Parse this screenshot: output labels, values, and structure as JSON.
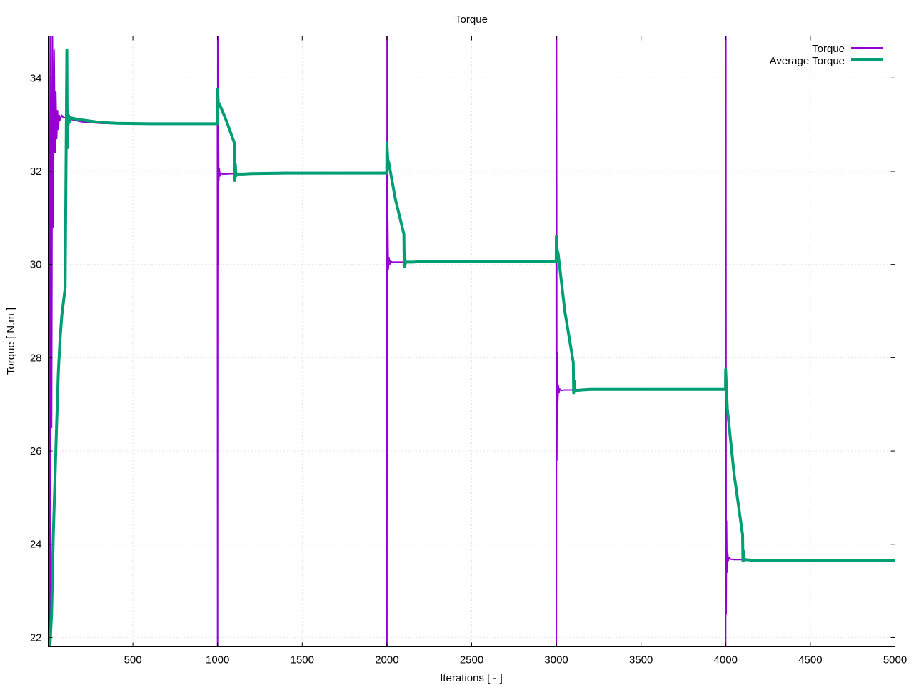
{
  "chart_data": {
    "type": "line",
    "title": "Torque",
    "xlabel": "Iterations [ - ]",
    "ylabel": "Torque [ N.m ]",
    "xlim": [
      0,
      5000
    ],
    "ylim": [
      21.8,
      34.9
    ],
    "x_ticks": [
      500,
      1000,
      1500,
      2000,
      2500,
      3000,
      3500,
      4000,
      4500,
      5000
    ],
    "y_ticks": [
      22,
      24,
      26,
      28,
      30,
      32,
      34
    ],
    "grid": true,
    "legend_position": "top-right",
    "series": [
      {
        "name": "Torque",
        "color": "#9400d3",
        "x": [
          0,
          5,
          10,
          15,
          20,
          25,
          30,
          35,
          40,
          45,
          50,
          55,
          60,
          65,
          70,
          80,
          90,
          100,
          110,
          120,
          150,
          200,
          300,
          400,
          600,
          800,
          999,
          1000,
          1001,
          1003,
          1005,
          1007,
          1010,
          1015,
          1020,
          1030,
          1050,
          1100,
          1200,
          1400,
          1600,
          1800,
          1999,
          2000,
          2001,
          2003,
          2005,
          2008,
          2012,
          2016,
          2020,
          2030,
          2050,
          2100,
          2200,
          2400,
          2600,
          2800,
          2999,
          3000,
          3001,
          3003,
          3005,
          3008,
          3012,
          3016,
          3020,
          3030,
          3050,
          3100,
          3200,
          3400,
          3600,
          3800,
          3999,
          4000,
          4001,
          4003,
          4005,
          4008,
          4012,
          4016,
          4020,
          4030,
          4050,
          4100,
          4200,
          4400,
          4600,
          4800,
          5000
        ],
        "y": [
          21.8,
          34.9,
          21.8,
          34.9,
          26.5,
          34.9,
          30.8,
          34.6,
          32.4,
          33.7,
          32.7,
          33.3,
          32.9,
          33.2,
          33.1,
          33.2,
          33.15,
          33.15,
          33.15,
          33.12,
          33.1,
          33.06,
          33.03,
          33.02,
          33.02,
          33.02,
          33.02,
          21.8,
          34.9,
          30.0,
          32.9,
          31.8,
          32.05,
          31.9,
          31.95,
          31.94,
          31.94,
          31.95,
          31.95,
          31.96,
          31.96,
          31.96,
          31.96,
          21.8,
          34.9,
          28.3,
          30.95,
          29.9,
          30.15,
          30.0,
          30.08,
          30.05,
          30.05,
          30.05,
          30.06,
          30.06,
          30.06,
          30.06,
          30.06,
          21.8,
          34.9,
          25.8,
          28.1,
          27.0,
          27.4,
          27.25,
          27.33,
          27.3,
          27.31,
          27.31,
          27.32,
          27.32,
          27.32,
          27.32,
          27.32,
          21.8,
          34.9,
          22.5,
          24.5,
          23.4,
          23.8,
          23.65,
          23.72,
          23.68,
          23.67,
          23.67,
          23.66,
          23.66,
          23.66,
          23.66,
          23.66
        ]
      },
      {
        "name": "Average Torque",
        "color": "#009e73",
        "x": [
          0,
          10,
          20,
          30,
          40,
          50,
          60,
          70,
          80,
          90,
          100,
          105,
          110,
          112,
          115,
          118,
          120,
          125,
          130,
          150,
          200,
          300,
          400,
          600,
          800,
          999,
          1000,
          1005,
          1010,
          1050,
          1100,
          1102,
          1105,
          1108,
          1110,
          1120,
          1150,
          1200,
          1400,
          1600,
          1800,
          1999,
          2000,
          2005,
          2010,
          2050,
          2100,
          2102,
          2105,
          2108,
          2110,
          2120,
          2150,
          2200,
          2400,
          2600,
          2800,
          2999,
          3000,
          3005,
          3010,
          3050,
          3100,
          3102,
          3105,
          3108,
          3110,
          3120,
          3150,
          3200,
          3400,
          3600,
          3800,
          3999,
          4000,
          4005,
          4010,
          4050,
          4100,
          4102,
          4105,
          4108,
          4110,
          4120,
          4150,
          4200,
          4400,
          4600,
          4800,
          5000
        ],
        "y": [
          21.8,
          21.8,
          22.5,
          24.2,
          25.4,
          26.6,
          27.7,
          28.4,
          28.9,
          29.2,
          29.5,
          32.0,
          34.6,
          32.5,
          33.3,
          33.0,
          33.2,
          33.05,
          33.15,
          33.13,
          33.1,
          33.05,
          33.03,
          33.02,
          33.02,
          33.02,
          33.75,
          33.4,
          33.45,
          33.1,
          32.6,
          31.8,
          32.15,
          31.9,
          31.95,
          31.94,
          31.94,
          31.95,
          31.96,
          31.96,
          31.96,
          31.96,
          32.6,
          32.25,
          32.2,
          31.4,
          30.65,
          29.95,
          30.25,
          30.0,
          30.05,
          30.05,
          30.05,
          30.06,
          30.06,
          30.06,
          30.06,
          30.06,
          30.6,
          30.3,
          30.25,
          29.0,
          27.9,
          27.25,
          27.5,
          27.28,
          27.32,
          27.3,
          27.31,
          27.32,
          27.32,
          27.32,
          27.32,
          27.32,
          27.75,
          27.3,
          26.9,
          25.5,
          24.2,
          23.65,
          23.85,
          23.65,
          23.68,
          23.67,
          23.66,
          23.66,
          23.66,
          23.66,
          23.66,
          23.66
        ]
      }
    ]
  }
}
